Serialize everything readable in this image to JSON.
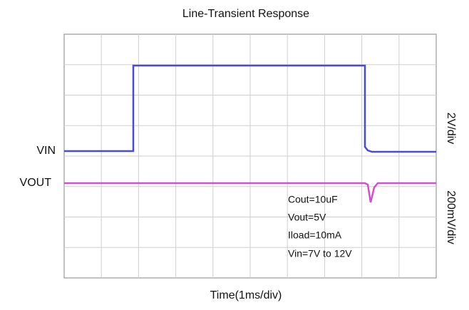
{
  "title": "Line-Transient Response",
  "x_label": "Time(1ms/div)",
  "channels": [
    {
      "name": "VIN",
      "scale": "2V/div",
      "color": "#4a4ad8"
    },
    {
      "name": "VOUT",
      "scale": "200mV/div",
      "color": "#d24fd2"
    }
  ],
  "annotations": [
    "Cout=10uF",
    "Vout=5V",
    "Iload=10mA",
    "Vin=7V to 12V"
  ]
}
